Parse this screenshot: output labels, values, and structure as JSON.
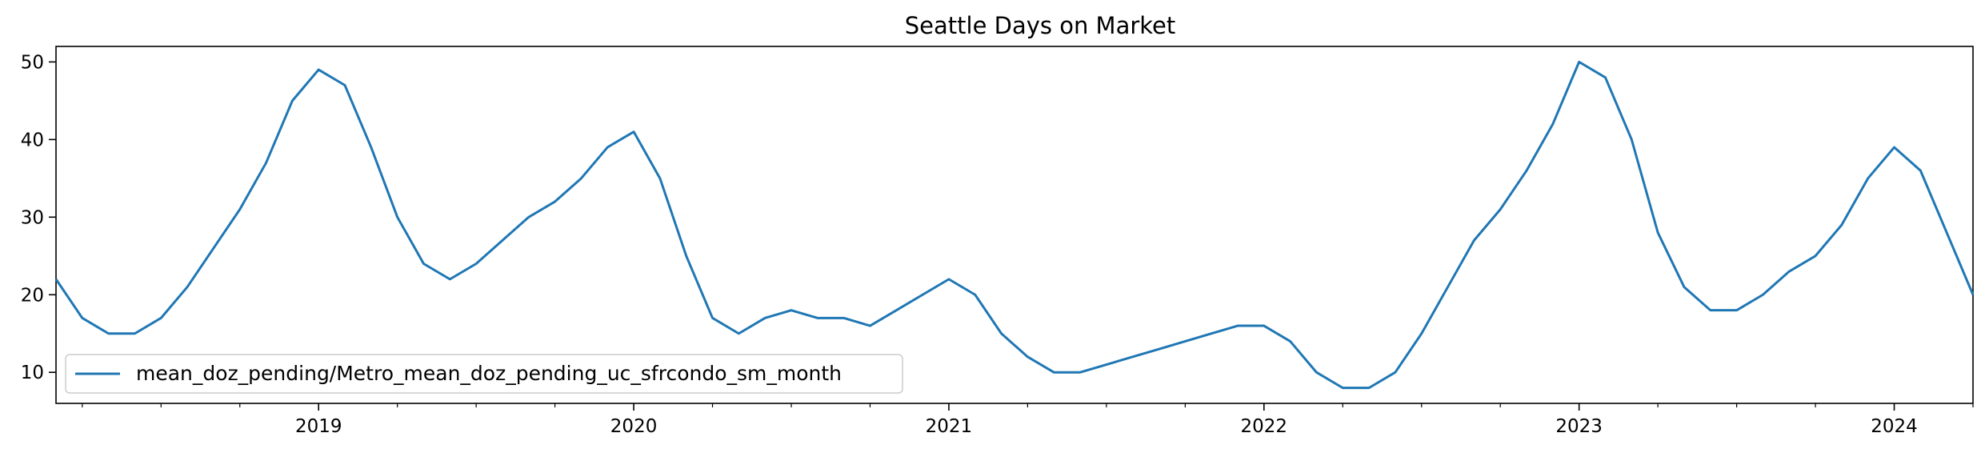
{
  "chart_data": {
    "type": "line",
    "title": "Seattle Days on Market",
    "xlabel": "",
    "ylabel": "",
    "x_start": "2018-03",
    "x_end": "2024-04",
    "xlim": [
      "2018-03",
      "2024-04"
    ],
    "ylim": [
      6,
      52
    ],
    "yticks": [
      10,
      20,
      30,
      40,
      50
    ],
    "xtick_labels": [
      "2019",
      "2020",
      "2021",
      "2022",
      "2023",
      "2024"
    ],
    "legend_position": "lower-left",
    "grid": false,
    "line_color": "#1f77b4",
    "series": [
      {
        "name": "mean_doz_pending/Metro_mean_doz_pending_uc_sfrcondo_sm_month",
        "x": [
          "2018-03",
          "2018-04",
          "2018-05",
          "2018-06",
          "2018-07",
          "2018-08",
          "2018-09",
          "2018-10",
          "2018-11",
          "2018-12",
          "2019-01",
          "2019-02",
          "2019-03",
          "2019-04",
          "2019-05",
          "2019-06",
          "2019-07",
          "2019-08",
          "2019-09",
          "2019-10",
          "2019-11",
          "2019-12",
          "2020-01",
          "2020-02",
          "2020-03",
          "2020-04",
          "2020-05",
          "2020-06",
          "2020-07",
          "2020-08",
          "2020-09",
          "2020-10",
          "2020-11",
          "2020-12",
          "2021-01",
          "2021-02",
          "2021-03",
          "2021-04",
          "2021-05",
          "2021-06",
          "2021-07",
          "2021-08",
          "2021-09",
          "2021-10",
          "2021-11",
          "2021-12",
          "2022-01",
          "2022-02",
          "2022-03",
          "2022-04",
          "2022-05",
          "2022-06",
          "2022-07",
          "2022-08",
          "2022-09",
          "2022-10",
          "2022-11",
          "2022-12",
          "2023-01",
          "2023-02",
          "2023-03",
          "2023-04",
          "2023-05",
          "2023-06",
          "2023-07",
          "2023-08",
          "2023-09",
          "2023-10",
          "2023-11",
          "2023-12",
          "2024-01",
          "2024-02",
          "2024-03",
          "2024-04"
        ],
        "values": [
          22,
          17,
          15,
          15,
          17,
          21,
          26,
          31,
          37,
          45,
          49,
          47,
          39,
          30,
          24,
          22,
          24,
          27,
          30,
          32,
          35,
          39,
          41,
          35,
          25,
          17,
          15,
          17,
          18,
          17,
          17,
          16,
          18,
          20,
          22,
          20,
          15,
          12,
          10,
          10,
          11,
          12,
          13,
          14,
          15,
          16,
          16,
          14,
          10,
          8,
          8,
          10,
          15,
          21,
          27,
          31,
          36,
          42,
          50,
          48,
          40,
          28,
          21,
          18,
          18,
          20,
          23,
          25,
          29,
          35,
          39,
          36,
          28,
          20
        ]
      }
    ]
  }
}
